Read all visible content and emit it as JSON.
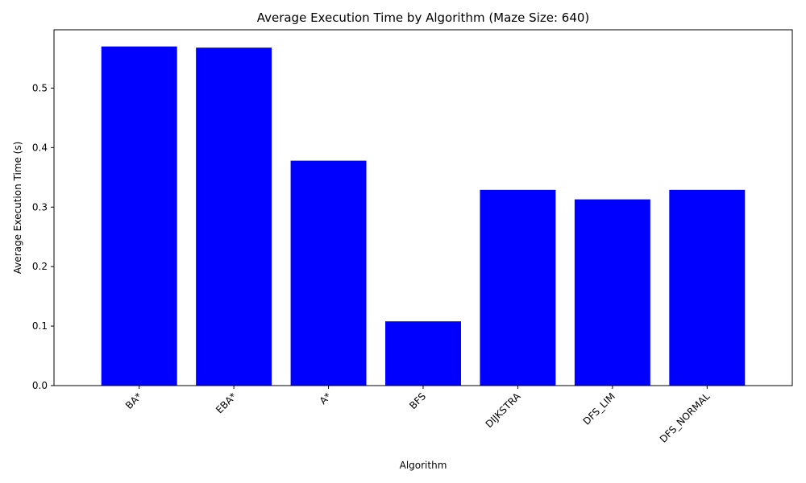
{
  "chart_data": {
    "type": "bar",
    "title": "Average Execution Time by Algorithm (Maze Size: 640)",
    "xlabel": "Algorithm",
    "ylabel": "Average Execution Time (s)",
    "categories": [
      "BA*",
      "EBA*",
      "A*",
      "BFS",
      "DIJKSTRA",
      "DFS_LIM",
      "DFS_NORMAL"
    ],
    "values": [
      0.57,
      0.568,
      0.378,
      0.108,
      0.329,
      0.313,
      0.329
    ],
    "ylim": [
      0,
      0.598
    ],
    "yticks": [
      0.0,
      0.1,
      0.2,
      0.3,
      0.4,
      0.5
    ],
    "ytick_labels": [
      "0.0",
      "0.1",
      "0.2",
      "0.3",
      "0.4",
      "0.5"
    ],
    "bar_color": "#0000ff",
    "grid": false,
    "legend": "none"
  }
}
